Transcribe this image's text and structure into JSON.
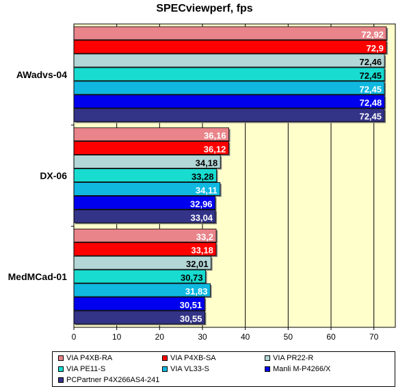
{
  "chart_data": {
    "type": "bar",
    "orientation": "horizontal",
    "title": "SPECviewperf, fps",
    "xlabel": "",
    "ylabel": "",
    "xlim": [
      0,
      75
    ],
    "x_ticks": [
      "0",
      "10",
      "20",
      "30",
      "40",
      "50",
      "60",
      "70"
    ],
    "grid": true,
    "legend_position": "bottom",
    "categories": [
      "AWadvs-04",
      "DX-06",
      "MedMCad-01"
    ],
    "series": [
      {
        "name": "VIA P4XB-RA",
        "color": "#e8848a",
        "values": [
          72.92,
          36.16,
          33.2
        ],
        "labels": [
          "72,92",
          "36,16",
          "33,2"
        ]
      },
      {
        "name": "VIA P4XB-SA",
        "color": "#ff0000",
        "values": [
          72.9,
          36.12,
          33.18
        ],
        "labels": [
          "72,9",
          "36,12",
          "33,18"
        ]
      },
      {
        "name": "VIA PR22-R",
        "color": "#b3d6d6",
        "values": [
          72.46,
          34.18,
          32.01
        ],
        "labels": [
          "72,46",
          "34,18",
          "32,01"
        ]
      },
      {
        "name": "VIA PE11-S",
        "color": "#18dcd0",
        "values": [
          72.45,
          33.28,
          30.73
        ],
        "labels": [
          "72,45",
          "33,28",
          "30,73"
        ]
      },
      {
        "name": "VIA VL33-S",
        "color": "#10b8e0",
        "values": [
          72.45,
          34.11,
          31.83
        ],
        "labels": [
          "72,45",
          "34,11",
          "31,83"
        ]
      },
      {
        "name": "Manli M-P4266/X",
        "color": "#0000ee",
        "values": [
          72.48,
          32.96,
          30.51
        ],
        "labels": [
          "72,48",
          "32,96",
          "30,51"
        ]
      },
      {
        "name": "PCPartner P4X266AS4-241",
        "color": "#333388",
        "values": [
          72.45,
          33.04,
          30.55
        ],
        "labels": [
          "72,45",
          "33,04",
          "30,55"
        ]
      }
    ]
  },
  "colors": {
    "plot_background": "#ffffcc",
    "label_light_text": "#ffffff",
    "label_dark_text": "#000000"
  }
}
